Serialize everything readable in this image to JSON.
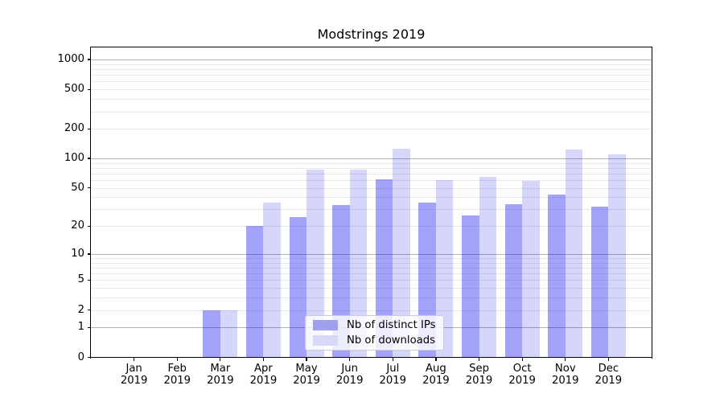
{
  "chart_data": {
    "type": "bar",
    "title": "Modstrings 2019",
    "categories": [
      "Jan 2019",
      "Feb 2019",
      "Mar 2019",
      "Apr 2019",
      "May 2019",
      "Jun 2019",
      "Jul 2019",
      "Aug 2019",
      "Sep 2019",
      "Oct 2019",
      "Nov 2019",
      "Dec 2019"
    ],
    "series": [
      {
        "name": "Nb of distinct IPs",
        "swatch_color": "#a0a0ee",
        "fill": "rgba(0,0,238,0.36)",
        "values": [
          0,
          0,
          2,
          20,
          25,
          33,
          61,
          35,
          26,
          34,
          43,
          32
        ]
      },
      {
        "name": "Nb of downloads",
        "swatch_color": "#d8d8f8",
        "fill": "rgba(0,0,238,0.16)",
        "values": [
          0,
          0,
          2,
          35,
          77,
          77,
          125,
          60,
          65,
          59,
          122,
          110
        ]
      }
    ],
    "xlabel": "",
    "ylabel": "",
    "yscale": "log1p",
    "ylim": [
      0,
      1325
    ],
    "yticks": [
      0,
      1,
      2,
      5,
      10,
      20,
      50,
      100,
      200,
      500,
      1000
    ],
    "grid": true,
    "grid_major_values": [
      1,
      10,
      100,
      1000
    ],
    "grid_minor_values": [
      2,
      3,
      4,
      5,
      6,
      7,
      8,
      9,
      20,
      30,
      40,
      50,
      60,
      70,
      80,
      90,
      200,
      300,
      400,
      500,
      600,
      700,
      800,
      900
    ],
    "legend_position": "lower center"
  },
  "colors": {
    "grid_major": "#b3b3b3",
    "grid_minor": "#e9e9e9",
    "axis": "#000000",
    "text": "#000000",
    "legend_border": "#cccccc",
    "legend_bg": "rgba(255,255,255,0.8)"
  }
}
